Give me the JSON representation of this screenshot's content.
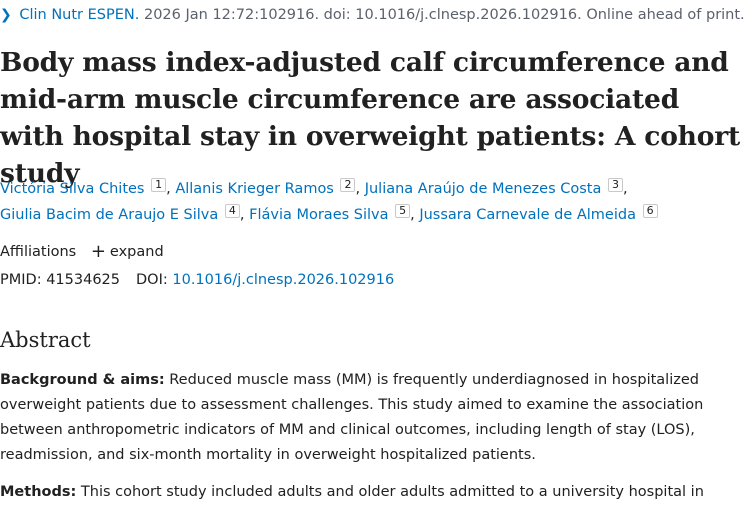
{
  "citation": {
    "journal": "Clin Nutr ESPEN.",
    "details": "2026 Jan 12:72:102916. doi: 10.1016/j.clnesp.2026.102916. Online ahead of print."
  },
  "title": "Body mass index-adjusted calf circumference and mid-arm muscle circumference are associated with hospital stay in overweight patients: A cohort study",
  "authors": [
    {
      "name": "Victória Silva Chites",
      "aff": "1"
    },
    {
      "name": "Allanis Krieger Ramos",
      "aff": "2"
    },
    {
      "name": "Juliana Araújo de Menezes Costa",
      "aff": "3"
    },
    {
      "name": "Giulia Bacim de Araujo E Silva",
      "aff": "4"
    },
    {
      "name": "Flávia Moraes Silva",
      "aff": "5"
    },
    {
      "name": "Jussara Carnevale de Almeida",
      "aff": "6"
    }
  ],
  "affiliations": {
    "label": "Affiliations",
    "expand_label": "expand"
  },
  "ids": {
    "pmid_label": "PMID:",
    "pmid": "41534625",
    "doi_label": "DOI:",
    "doi": "10.1016/j.clnesp.2026.102916"
  },
  "abstract": {
    "heading": "Abstract",
    "sections": [
      {
        "label": "Background & aims:",
        "text": "Reduced muscle mass (MM) is frequently underdiagnosed in hospitalized overweight patients due to assessment challenges. This study aimed to examine the association between anthropometric indicators of MM and clinical outcomes, including length of stay (LOS), readmission, and six-month mortality in overweight hospitalized patients."
      },
      {
        "label": "Methods:",
        "text": "This cohort study included adults and older adults admitted to a university hospital in"
      }
    ]
  }
}
